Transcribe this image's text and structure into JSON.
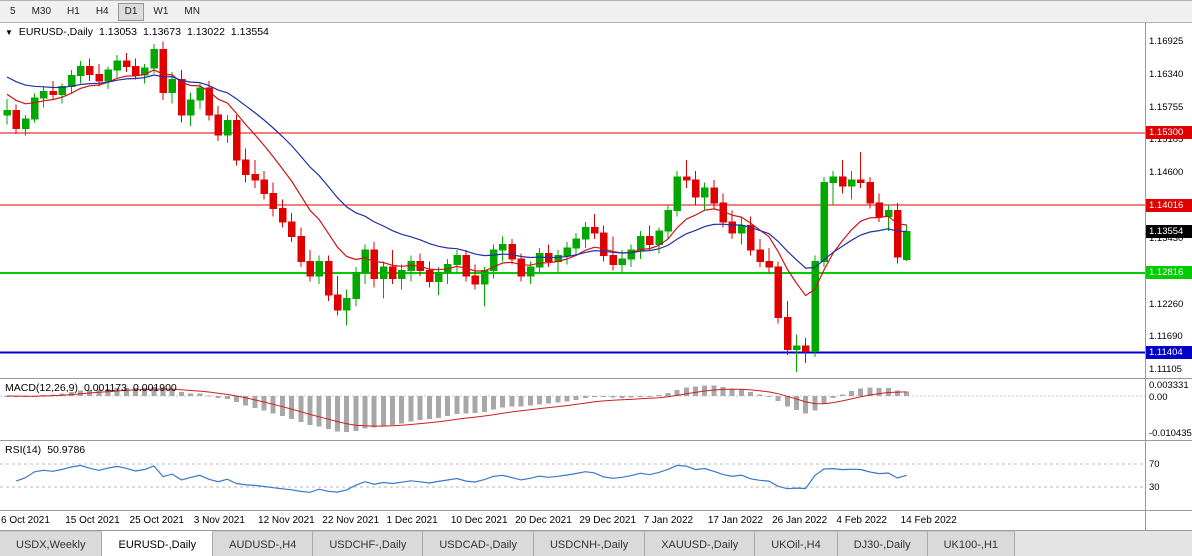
{
  "toolbar": {
    "timeframes": [
      "5",
      "M30",
      "H1",
      "H4",
      "D1",
      "W1",
      "MN"
    ],
    "active": "D1"
  },
  "chart": {
    "title": "EURUSD-,Daily",
    "open": "1.13053",
    "high": "1.13673",
    "low": "1.13022",
    "close": "1.13554"
  },
  "chart_data": {
    "type": "candlestick",
    "title": "EURUSD-,Daily",
    "price_axis": {
      "max": 1.1725,
      "min": 1.1095
    },
    "colors": {
      "up": "#00a800",
      "down": "#e00000"
    },
    "axis_labels": [
      {
        "value": 1.16925,
        "label": "1.16925"
      },
      {
        "value": 1.1634,
        "label": "1.16340"
      },
      {
        "value": 1.15755,
        "label": "1.15755"
      },
      {
        "value": 1.15185,
        "label": "1.15185"
      },
      {
        "value": 1.146,
        "label": "1.14600"
      },
      {
        "value": 1.1343,
        "label": "1.13430"
      },
      {
        "value": 1.1226,
        "label": "1.12260"
      },
      {
        "value": 1.1169,
        "label": "1.11690"
      },
      {
        "value": 1.11105,
        "label": "1.11105"
      }
    ],
    "levels": [
      {
        "value": 1.153,
        "label": "1.15300",
        "color": "#e00000",
        "weight": 1
      },
      {
        "value": 1.14016,
        "label": "1.14016",
        "color": "#e00000",
        "weight": 1
      },
      {
        "value": 1.12816,
        "label": "1.12816",
        "color": "#00cc00",
        "weight": 2
      },
      {
        "value": 1.11404,
        "label": "1.11404",
        "color": "#0000c8",
        "weight": 2
      }
    ],
    "current": {
      "value": 1.13554,
      "label": "1.13554",
      "color": "#000000"
    },
    "overlays": [
      {
        "name": "ma-fast",
        "color": "#cc1414",
        "period": 10,
        "seed": 1.1605
      },
      {
        "name": "ma-slow",
        "color": "#2230a8",
        "period": 21,
        "seed": 1.1635
      }
    ],
    "x_labels": [
      {
        "i": 0,
        "label": "6 Oct 2021"
      },
      {
        "i": 7,
        "label": "15 Oct 2021"
      },
      {
        "i": 14,
        "label": "25 Oct 2021"
      },
      {
        "i": 21,
        "label": "3 Nov 2021"
      },
      {
        "i": 28,
        "label": "12 Nov 2021"
      },
      {
        "i": 35,
        "label": "22 Nov 2021"
      },
      {
        "i": 42,
        "label": "1 Dec 2021"
      },
      {
        "i": 49,
        "label": "10 Dec 2021"
      },
      {
        "i": 56,
        "label": "20 Dec 2021"
      },
      {
        "i": 63,
        "label": "29 Dec 2021"
      },
      {
        "i": 70,
        "label": "7 Jan 2022"
      },
      {
        "i": 77,
        "label": "17 Jan 2022"
      },
      {
        "i": 84,
        "label": "26 Jan 2022"
      },
      {
        "i": 91,
        "label": "4 Feb 2022"
      },
      {
        "i": 98,
        "label": "14 Feb 2022"
      }
    ],
    "candles": [
      [
        1.1562,
        1.159,
        1.1545,
        1.157
      ],
      [
        1.157,
        1.158,
        1.1528,
        1.1538
      ],
      [
        1.1538,
        1.1562,
        1.1525,
        1.1555
      ],
      [
        1.1555,
        1.16,
        1.1548,
        1.1592
      ],
      [
        1.1592,
        1.1612,
        1.1575,
        1.1603
      ],
      [
        1.1603,
        1.1622,
        1.159,
        1.1598
      ],
      [
        1.1598,
        1.1618,
        1.1582,
        1.1612
      ],
      [
        1.1612,
        1.1642,
        1.16,
        1.1632
      ],
      [
        1.1632,
        1.1658,
        1.1618,
        1.1648
      ],
      [
        1.1648,
        1.1662,
        1.1622,
        1.1634
      ],
      [
        1.1634,
        1.1652,
        1.1612,
        1.1622
      ],
      [
        1.1622,
        1.1648,
        1.1608,
        1.1642
      ],
      [
        1.1642,
        1.1668,
        1.1628,
        1.1658
      ],
      [
        1.1658,
        1.1672,
        1.1638,
        1.1648
      ],
      [
        1.1648,
        1.1662,
        1.1625,
        1.1633
      ],
      [
        1.1633,
        1.1652,
        1.1618,
        1.1645
      ],
      [
        1.1645,
        1.1688,
        1.1635,
        1.1678
      ],
      [
        1.1678,
        1.1692,
        1.1588,
        1.1602
      ],
      [
        1.1602,
        1.1638,
        1.1582,
        1.1625
      ],
      [
        1.1625,
        1.1642,
        1.1548,
        1.1562
      ],
      [
        1.1562,
        1.1602,
        1.1542,
        1.1588
      ],
      [
        1.1588,
        1.1618,
        1.1572,
        1.161
      ],
      [
        1.161,
        1.1622,
        1.1552,
        1.1562
      ],
      [
        1.1562,
        1.1578,
        1.1516,
        1.1526
      ],
      [
        1.1526,
        1.1562,
        1.1512,
        1.1552
      ],
      [
        1.1552,
        1.1562,
        1.1472,
        1.1482
      ],
      [
        1.1482,
        1.1502,
        1.1442,
        1.1456
      ],
      [
        1.1456,
        1.1482,
        1.1432,
        1.1446
      ],
      [
        1.1446,
        1.1462,
        1.1412,
        1.1422
      ],
      [
        1.1422,
        1.1442,
        1.1382,
        1.1396
      ],
      [
        1.1396,
        1.1412,
        1.1362,
        1.1372
      ],
      [
        1.1372,
        1.1388,
        1.1336,
        1.1346
      ],
      [
        1.1346,
        1.1362,
        1.1292,
        1.1302
      ],
      [
        1.1302,
        1.1322,
        1.1266,
        1.1276
      ],
      [
        1.1276,
        1.1312,
        1.1262,
        1.1302
      ],
      [
        1.1302,
        1.1312,
        1.1232,
        1.1242
      ],
      [
        1.1242,
        1.1276,
        1.1206,
        1.1216
      ],
      [
        1.1216,
        1.1252,
        1.1188,
        1.1236
      ],
      [
        1.1236,
        1.1292,
        1.1222,
        1.1282
      ],
      [
        1.1282,
        1.1332,
        1.1262,
        1.1322
      ],
      [
        1.1322,
        1.1336,
        1.1256,
        1.1272
      ],
      [
        1.1272,
        1.1302,
        1.1236,
        1.1292
      ],
      [
        1.1292,
        1.1322,
        1.1262,
        1.1272
      ],
      [
        1.1272,
        1.1296,
        1.1252,
        1.1286
      ],
      [
        1.1286,
        1.1312,
        1.1266,
        1.1302
      ],
      [
        1.1302,
        1.1316,
        1.1276,
        1.1286
      ],
      [
        1.1286,
        1.1302,
        1.1256,
        1.1266
      ],
      [
        1.1266,
        1.1292,
        1.1242,
        1.1282
      ],
      [
        1.1282,
        1.1306,
        1.1262,
        1.1296
      ],
      [
        1.1296,
        1.1322,
        1.1282,
        1.1312
      ],
      [
        1.1312,
        1.1322,
        1.1266,
        1.1276
      ],
      [
        1.1276,
        1.1296,
        1.1252,
        1.1262
      ],
      [
        1.1262,
        1.1292,
        1.1222,
        1.1286
      ],
      [
        1.1286,
        1.1332,
        1.1272,
        1.1322
      ],
      [
        1.1322,
        1.1346,
        1.1302,
        1.1332
      ],
      [
        1.1332,
        1.1342,
        1.1296,
        1.1306
      ],
      [
        1.1306,
        1.1316,
        1.1266,
        1.1276
      ],
      [
        1.1276,
        1.1302,
        1.1262,
        1.1292
      ],
      [
        1.1292,
        1.1326,
        1.1282,
        1.1316
      ],
      [
        1.1316,
        1.1332,
        1.1292,
        1.1302
      ],
      [
        1.1302,
        1.1322,
        1.1282,
        1.1312
      ],
      [
        1.1312,
        1.1336,
        1.1296,
        1.1326
      ],
      [
        1.1326,
        1.1352,
        1.1312,
        1.1342
      ],
      [
        1.1342,
        1.1372,
        1.1326,
        1.1362
      ],
      [
        1.1362,
        1.1386,
        1.1342,
        1.1352
      ],
      [
        1.1352,
        1.1366,
        1.1302,
        1.1312
      ],
      [
        1.1312,
        1.1346,
        1.1286,
        1.1296
      ],
      [
        1.1296,
        1.1322,
        1.1282,
        1.1306
      ],
      [
        1.1306,
        1.1332,
        1.1292,
        1.1322
      ],
      [
        1.1322,
        1.1356,
        1.1306,
        1.1346
      ],
      [
        1.1346,
        1.1366,
        1.1322,
        1.1332
      ],
      [
        1.1332,
        1.1362,
        1.1316,
        1.1356
      ],
      [
        1.1356,
        1.1402,
        1.1342,
        1.1392
      ],
      [
        1.1392,
        1.1462,
        1.1382,
        1.1452
      ],
      [
        1.1452,
        1.1482,
        1.1432,
        1.1446
      ],
      [
        1.1446,
        1.1462,
        1.1402,
        1.1416
      ],
      [
        1.1416,
        1.1442,
        1.1392,
        1.1432
      ],
      [
        1.1432,
        1.1446,
        1.1396,
        1.1406
      ],
      [
        1.1406,
        1.1422,
        1.1362,
        1.1372
      ],
      [
        1.1372,
        1.1392,
        1.1342,
        1.1352
      ],
      [
        1.1352,
        1.1382,
        1.1332,
        1.1366
      ],
      [
        1.1366,
        1.1382,
        1.1312,
        1.1322
      ],
      [
        1.1322,
        1.1342,
        1.1292,
        1.1302
      ],
      [
        1.1302,
        1.1326,
        1.1282,
        1.1292
      ],
      [
        1.1292,
        1.1302,
        1.1192,
        1.1202
      ],
      [
        1.1202,
        1.1232,
        1.1136,
        1.1146
      ],
      [
        1.1146,
        1.1172,
        1.1106,
        1.1152
      ],
      [
        1.1152,
        1.1166,
        1.1122,
        1.1142
      ],
      [
        1.1142,
        1.1312,
        1.1132,
        1.1302
      ],
      [
        1.1302,
        1.1452,
        1.1292,
        1.1442
      ],
      [
        1.1442,
        1.1462,
        1.1402,
        1.1452
      ],
      [
        1.1452,
        1.1482,
        1.1422,
        1.1436
      ],
      [
        1.1436,
        1.1462,
        1.1412,
        1.1446
      ],
      [
        1.1446,
        1.1496,
        1.1432,
        1.1442
      ],
      [
        1.1442,
        1.1452,
        1.1396,
        1.1406
      ],
      [
        1.1406,
        1.1422,
        1.1372,
        1.1382
      ],
      [
        1.1382,
        1.1402,
        1.1356,
        1.1392
      ],
      [
        1.1392,
        1.1406,
        1.1298,
        1.131
      ],
      [
        1.13053,
        1.13673,
        1.13022,
        1.13554
      ]
    ]
  },
  "macd": {
    "label": "MACD(12,26,9)",
    "value_main": "0.001173",
    "value_signal": "0.001900",
    "params": {
      "fast": 12,
      "slow": 26,
      "signal": 9
    },
    "axis_labels": {
      "top": "0.003331",
      "zero": "0.00",
      "bottom": "-0.010435"
    },
    "colors": {
      "histogram": "#a8a8a8",
      "signal": "#cc2020"
    }
  },
  "rsi": {
    "label": "RSI(14)",
    "value": "50.9786",
    "period": 14,
    "levels": [
      70,
      30
    ],
    "axis_labels": [
      "70",
      "30"
    ],
    "color": "#3a78c8"
  },
  "tabs": [
    {
      "label": "USDX,Weekly",
      "active": false
    },
    {
      "label": "EURUSD-,Daily",
      "active": true
    },
    {
      "label": "AUDUSD-,H4",
      "active": false
    },
    {
      "label": "USDCHF-,Daily",
      "active": false
    },
    {
      "label": "USDCAD-,Daily",
      "active": false
    },
    {
      "label": "USDCNH-,Daily",
      "active": false
    },
    {
      "label": "XAUUSD-,Daily",
      "active": false
    },
    {
      "label": "UKOil-,H4",
      "active": false
    },
    {
      "label": "DJ30-,Daily",
      "active": false
    },
    {
      "label": "UK100-,H1",
      "active": false
    }
  ]
}
